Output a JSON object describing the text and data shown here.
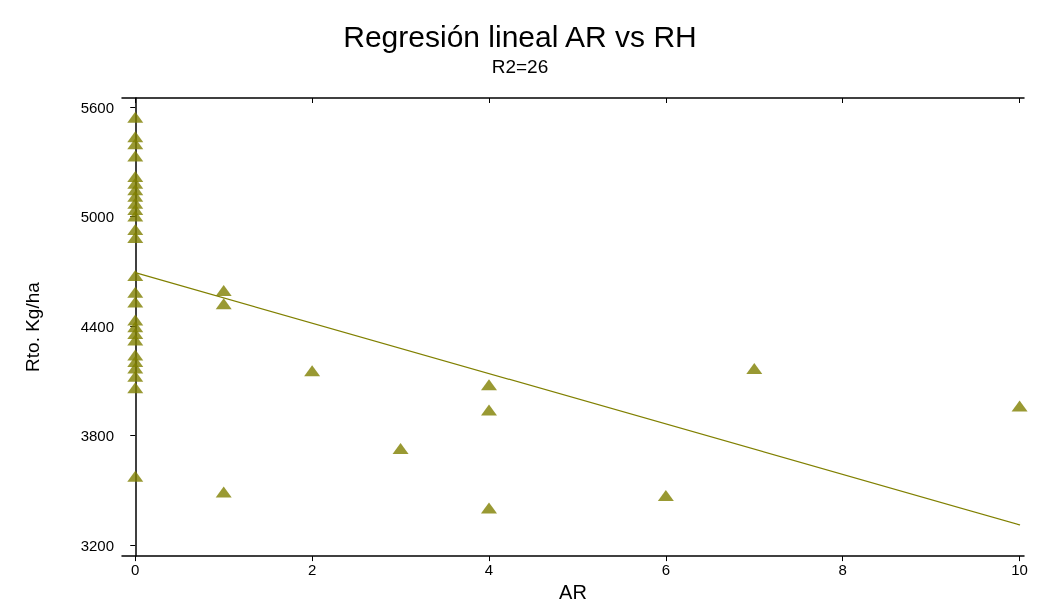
{
  "chart_data": {
    "type": "scatter",
    "title": "Regresión lineal AR vs RH",
    "subtitle": "R2=26",
    "xlabel": "AR",
    "ylabel": "Rto. Kg/ha",
    "xlim": [
      -0.15,
      10.05
    ],
    "xticks": [
      0,
      2,
      4,
      6,
      8,
      10
    ],
    "ylim": [
      3140,
      5650
    ],
    "yticks": [
      3200,
      3800,
      4400,
      5000,
      5600
    ],
    "grid": false,
    "marker": "triangle",
    "series": [
      {
        "color": "#808000",
        "x": [
          0,
          0,
          0,
          0,
          0,
          0,
          0,
          0,
          0,
          0,
          0,
          0,
          0,
          0,
          0,
          0,
          0,
          0,
          0,
          0,
          0,
          0,
          0,
          0,
          0,
          0,
          1,
          1,
          1,
          2,
          3,
          4,
          4,
          4,
          6,
          7,
          10
        ],
        "values": [
          5545,
          5437,
          5400,
          5332,
          5220,
          5183,
          5147,
          5111,
          5074,
          5039,
          5003,
          4930,
          4885,
          4677,
          4586,
          4532,
          4433,
          4396,
          4360,
          4324,
          4242,
          4206,
          4170,
          4125,
          4062,
          3578,
          4595,
          4523,
          3491,
          4156,
          3729,
          4079,
          3941,
          3404,
          3472,
          4168,
          3962
        ]
      },
      {
        "type": "line",
        "color": "#808000",
        "marker": "none",
        "x": [
          0,
          10
        ],
        "values": [
          4693,
          3311
        ]
      }
    ]
  }
}
